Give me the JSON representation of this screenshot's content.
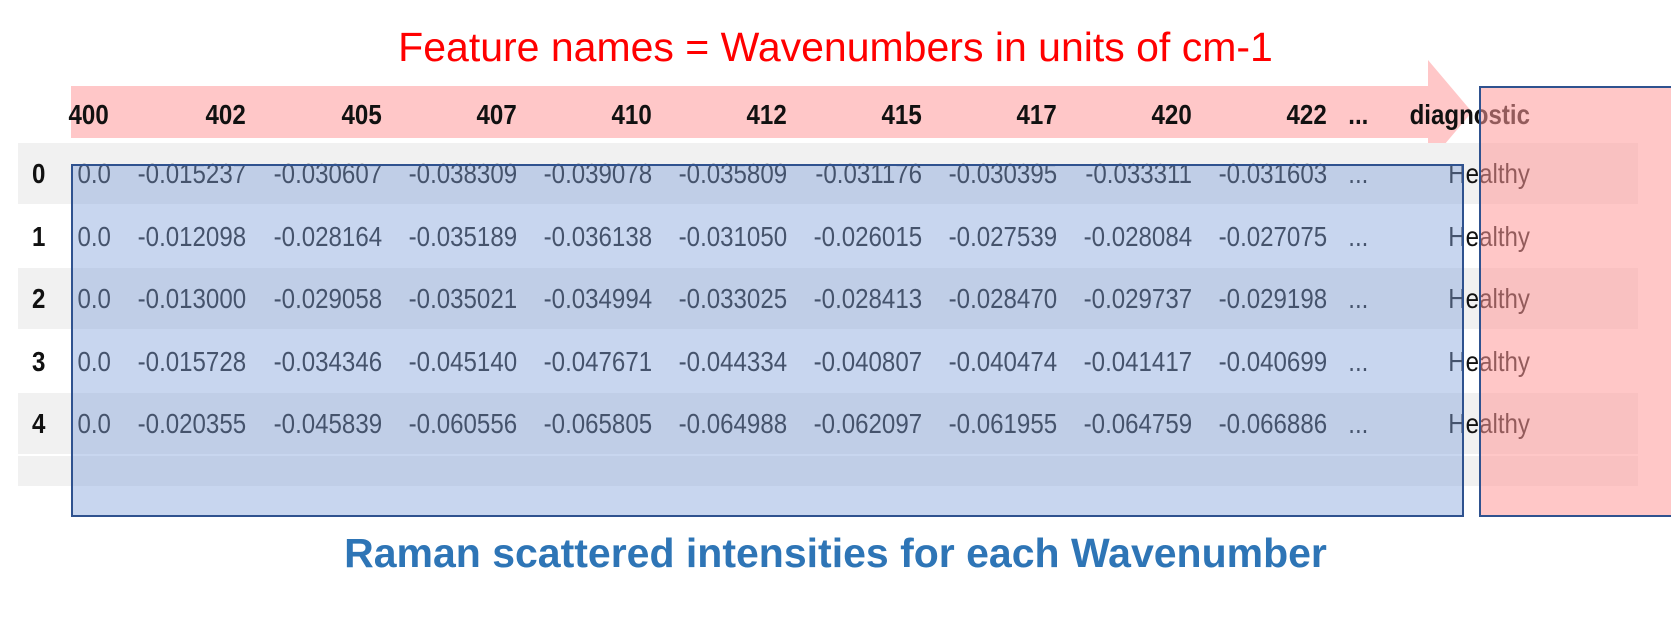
{
  "top_caption": "Feature names = Wavenumbers in units of cm-1",
  "bottom_caption": "Raman scattered intensities for each Wavenumber",
  "colors": {
    "top_caption": "#ff0000",
    "bottom_caption": "#2e75b6",
    "arrow_fill": "#ffc7c8",
    "blue_box": "#a9bde6",
    "pink_box": "#ffb3b3"
  },
  "table": {
    "columns": [
      "400",
      "402",
      "405",
      "407",
      "410",
      "412",
      "415",
      "417",
      "420",
      "422",
      "...",
      "diagnostic"
    ],
    "rows": [
      {
        "index": "0",
        "values": [
          "0.0",
          "-0.015237",
          "-0.030607",
          "-0.038309",
          "-0.039078",
          "-0.035809",
          "-0.031176",
          "-0.030395",
          "-0.033311",
          "-0.031603",
          "...",
          "Healthy"
        ]
      },
      {
        "index": "1",
        "values": [
          "0.0",
          "-0.012098",
          "-0.028164",
          "-0.035189",
          "-0.036138",
          "-0.031050",
          "-0.026015",
          "-0.027539",
          "-0.028084",
          "-0.027075",
          "...",
          "Healthy"
        ]
      },
      {
        "index": "2",
        "values": [
          "0.0",
          "-0.013000",
          "-0.029058",
          "-0.035021",
          "-0.034994",
          "-0.033025",
          "-0.028413",
          "-0.028470",
          "-0.029737",
          "-0.029198",
          "...",
          "Healthy"
        ]
      },
      {
        "index": "3",
        "values": [
          "0.0",
          "-0.015728",
          "-0.034346",
          "-0.045140",
          "-0.047671",
          "-0.044334",
          "-0.040807",
          "-0.040474",
          "-0.041417",
          "-0.040699",
          "...",
          "Healthy"
        ]
      },
      {
        "index": "4",
        "values": [
          "0.0",
          "-0.020355",
          "-0.045839",
          "-0.060556",
          "-0.065805",
          "-0.064988",
          "-0.062097",
          "-0.061955",
          "-0.064759",
          "-0.066886",
          "...",
          "Healthy"
        ]
      }
    ]
  }
}
